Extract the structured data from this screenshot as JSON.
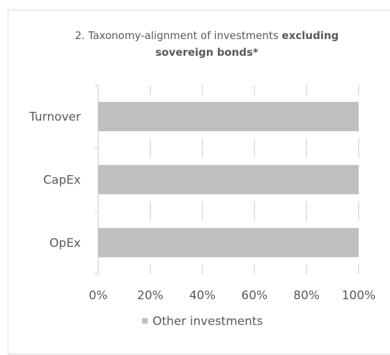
{
  "chart_data": {
    "type": "bar",
    "orientation": "horizontal",
    "stacked": true,
    "title": {
      "line1_regular": "2. Taxonomy-alignment of investments ",
      "line1_bold": "excluding",
      "line2_bold": "sovereign bonds*"
    },
    "categories": [
      "Turnover",
      "CapEx",
      "OpEx"
    ],
    "series": [
      {
        "name": "Other investments",
        "values": [
          100,
          100,
          100
        ],
        "color": "#bfbfbf"
      }
    ],
    "xlim": [
      0,
      100
    ],
    "xticks": [
      0,
      20,
      40,
      60,
      80,
      100
    ],
    "xtick_labels": [
      "0%",
      "20%",
      "40%",
      "60%",
      "80%",
      "100%"
    ],
    "grid": "vertical",
    "legend_position": "bottom",
    "xlabel": "",
    "ylabel": ""
  }
}
